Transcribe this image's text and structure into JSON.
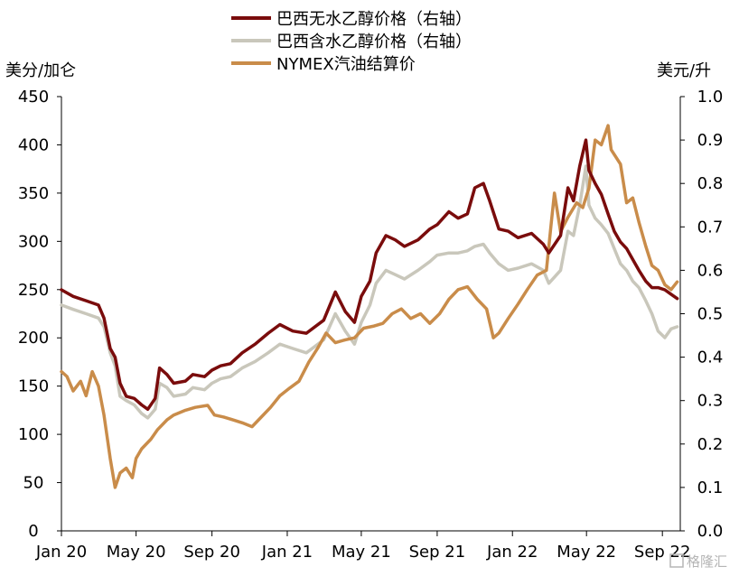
{
  "chart_data": {
    "type": "line",
    "title": "",
    "left_axis": {
      "label": "美分/加仑",
      "ylim": [
        0,
        450
      ],
      "ticks": [
        0,
        50,
        100,
        150,
        200,
        250,
        300,
        350,
        400,
        450
      ]
    },
    "right_axis": {
      "label": "美元/升",
      "ylim": [
        0,
        1.0
      ],
      "ticks": [
        "0.0",
        "0.1",
        "0.2",
        "0.3",
        "0.4",
        "0.5",
        "0.6",
        "0.7",
        "0.8",
        "0.9",
        "1.0"
      ]
    },
    "x_axis": {
      "range": [
        "2020-01-01",
        "2022-09-30"
      ],
      "ticks": [
        {
          "date": "2020-01-01",
          "label": "Jan 20"
        },
        {
          "date": "2020-05-01",
          "label": "May 20"
        },
        {
          "date": "2020-09-01",
          "label": "Sep 20"
        },
        {
          "date": "2021-01-01",
          "label": "Jan 21"
        },
        {
          "date": "2021-05-01",
          "label": "May 21"
        },
        {
          "date": "2021-09-01",
          "label": "Sep 21"
        },
        {
          "date": "2022-01-01",
          "label": "Jan 22"
        },
        {
          "date": "2022-05-01",
          "label": "May 22"
        },
        {
          "date": "2022-09-01",
          "label": "Sep 22"
        }
      ]
    },
    "grid": false,
    "legend_position": "top-center",
    "series": [
      {
        "name": "巴西无水乙醇价格（右轴）",
        "axis": "right",
        "color": "#7a0c0c",
        "points": [
          [
            "2020-01-01",
            0.555
          ],
          [
            "2020-01-20",
            0.54
          ],
          [
            "2020-02-10",
            0.53
          ],
          [
            "2020-03-01",
            0.52
          ],
          [
            "2020-03-10",
            0.49
          ],
          [
            "2020-03-20",
            0.42
          ],
          [
            "2020-03-28",
            0.4
          ],
          [
            "2020-04-05",
            0.34
          ],
          [
            "2020-04-15",
            0.31
          ],
          [
            "2020-04-28",
            0.305
          ],
          [
            "2020-05-10",
            0.29
          ],
          [
            "2020-05-20",
            0.28
          ],
          [
            "2020-06-01",
            0.305
          ],
          [
            "2020-06-08",
            0.375
          ],
          [
            "2020-06-20",
            0.36
          ],
          [
            "2020-07-01",
            0.34
          ],
          [
            "2020-07-20",
            0.345
          ],
          [
            "2020-08-01",
            0.36
          ],
          [
            "2020-08-20",
            0.355
          ],
          [
            "2020-09-01",
            0.37
          ],
          [
            "2020-09-15",
            0.38
          ],
          [
            "2020-10-01",
            0.385
          ],
          [
            "2020-10-20",
            0.41
          ],
          [
            "2020-11-10",
            0.43
          ],
          [
            "2020-12-01",
            0.455
          ],
          [
            "2020-12-20",
            0.475
          ],
          [
            "2021-01-10",
            0.46
          ],
          [
            "2021-02-01",
            0.455
          ],
          [
            "2021-03-01",
            0.485
          ],
          [
            "2021-03-20",
            0.55
          ],
          [
            "2021-04-05",
            0.505
          ],
          [
            "2021-04-20",
            0.48
          ],
          [
            "2021-05-01",
            0.54
          ],
          [
            "2021-05-15",
            0.575
          ],
          [
            "2021-05-25",
            0.64
          ],
          [
            "2021-06-10",
            0.68
          ],
          [
            "2021-06-25",
            0.67
          ],
          [
            "2021-07-10",
            0.655
          ],
          [
            "2021-08-01",
            0.67
          ],
          [
            "2021-08-20",
            0.695
          ],
          [
            "2021-09-01",
            0.705
          ],
          [
            "2021-09-20",
            0.735
          ],
          [
            "2021-10-05",
            0.72
          ],
          [
            "2021-10-20",
            0.73
          ],
          [
            "2021-11-01",
            0.79
          ],
          [
            "2021-11-15",
            0.8
          ],
          [
            "2021-11-25",
            0.76
          ],
          [
            "2021-12-10",
            0.695
          ],
          [
            "2021-12-25",
            0.69
          ],
          [
            "2022-01-10",
            0.675
          ],
          [
            "2022-02-01",
            0.685
          ],
          [
            "2022-02-20",
            0.66
          ],
          [
            "2022-03-01",
            0.64
          ],
          [
            "2022-03-20",
            0.68
          ],
          [
            "2022-04-01",
            0.79
          ],
          [
            "2022-04-10",
            0.76
          ],
          [
            "2022-04-20",
            0.84
          ],
          [
            "2022-04-30",
            0.9
          ],
          [
            "2022-05-05",
            0.83
          ],
          [
            "2022-05-15",
            0.8
          ],
          [
            "2022-05-25",
            0.775
          ],
          [
            "2022-06-05",
            0.73
          ],
          [
            "2022-06-15",
            0.69
          ],
          [
            "2022-06-25",
            0.665
          ],
          [
            "2022-07-05",
            0.65
          ],
          [
            "2022-07-15",
            0.625
          ],
          [
            "2022-07-25",
            0.6
          ],
          [
            "2022-08-05",
            0.575
          ],
          [
            "2022-08-15",
            0.56
          ],
          [
            "2022-08-25",
            0.56
          ],
          [
            "2022-09-05",
            0.555
          ],
          [
            "2022-09-15",
            0.545
          ],
          [
            "2022-09-25",
            0.535
          ]
        ]
      },
      {
        "name": "巴西含水乙醇价格（右轴）",
        "axis": "right",
        "color": "#c9c7bb",
        "points": [
          [
            "2020-01-01",
            0.52
          ],
          [
            "2020-01-20",
            0.51
          ],
          [
            "2020-02-10",
            0.5
          ],
          [
            "2020-03-01",
            0.49
          ],
          [
            "2020-03-10",
            0.47
          ],
          [
            "2020-03-20",
            0.41
          ],
          [
            "2020-03-28",
            0.38
          ],
          [
            "2020-04-05",
            0.31
          ],
          [
            "2020-04-15",
            0.3
          ],
          [
            "2020-04-28",
            0.29
          ],
          [
            "2020-05-10",
            0.27
          ],
          [
            "2020-05-20",
            0.26
          ],
          [
            "2020-06-01",
            0.28
          ],
          [
            "2020-06-08",
            0.34
          ],
          [
            "2020-06-20",
            0.33
          ],
          [
            "2020-07-01",
            0.31
          ],
          [
            "2020-07-20",
            0.315
          ],
          [
            "2020-08-01",
            0.33
          ],
          [
            "2020-08-20",
            0.325
          ],
          [
            "2020-09-01",
            0.34
          ],
          [
            "2020-09-15",
            0.35
          ],
          [
            "2020-10-01",
            0.355
          ],
          [
            "2020-10-20",
            0.375
          ],
          [
            "2020-11-10",
            0.39
          ],
          [
            "2020-12-01",
            0.41
          ],
          [
            "2020-12-20",
            0.43
          ],
          [
            "2021-01-10",
            0.42
          ],
          [
            "2021-02-01",
            0.41
          ],
          [
            "2021-03-01",
            0.44
          ],
          [
            "2021-03-20",
            0.5
          ],
          [
            "2021-04-05",
            0.46
          ],
          [
            "2021-04-20",
            0.43
          ],
          [
            "2021-05-01",
            0.48
          ],
          [
            "2021-05-15",
            0.52
          ],
          [
            "2021-05-25",
            0.57
          ],
          [
            "2021-06-10",
            0.6
          ],
          [
            "2021-06-25",
            0.59
          ],
          [
            "2021-07-10",
            0.58
          ],
          [
            "2021-08-01",
            0.6
          ],
          [
            "2021-08-20",
            0.62
          ],
          [
            "2021-09-01",
            0.635
          ],
          [
            "2021-09-20",
            0.64
          ],
          [
            "2021-10-05",
            0.64
          ],
          [
            "2021-10-20",
            0.645
          ],
          [
            "2021-11-01",
            0.655
          ],
          [
            "2021-11-15",
            0.66
          ],
          [
            "2021-11-25",
            0.64
          ],
          [
            "2021-12-10",
            0.615
          ],
          [
            "2021-12-25",
            0.6
          ],
          [
            "2022-01-10",
            0.605
          ],
          [
            "2022-02-01",
            0.615
          ],
          [
            "2022-02-20",
            0.6
          ],
          [
            "2022-03-01",
            0.57
          ],
          [
            "2022-03-20",
            0.6
          ],
          [
            "2022-04-01",
            0.69
          ],
          [
            "2022-04-10",
            0.68
          ],
          [
            "2022-04-20",
            0.75
          ],
          [
            "2022-04-30",
            0.84
          ],
          [
            "2022-05-05",
            0.75
          ],
          [
            "2022-05-15",
            0.72
          ],
          [
            "2022-05-25",
            0.705
          ],
          [
            "2022-06-05",
            0.685
          ],
          [
            "2022-06-15",
            0.65
          ],
          [
            "2022-06-25",
            0.615
          ],
          [
            "2022-07-05",
            0.6
          ],
          [
            "2022-07-15",
            0.575
          ],
          [
            "2022-07-25",
            0.56
          ],
          [
            "2022-08-05",
            0.53
          ],
          [
            "2022-08-15",
            0.5
          ],
          [
            "2022-08-25",
            0.46
          ],
          [
            "2022-09-05",
            0.445
          ],
          [
            "2022-09-15",
            0.465
          ],
          [
            "2022-09-25",
            0.47
          ]
        ]
      },
      {
        "name": "NYMEX汽油结算价",
        "axis": "left",
        "color": "#c98c4a",
        "points": [
          [
            "2020-01-01",
            165
          ],
          [
            "2020-01-10",
            160
          ],
          [
            "2020-01-20",
            145
          ],
          [
            "2020-02-01",
            155
          ],
          [
            "2020-02-10",
            140
          ],
          [
            "2020-02-20",
            165
          ],
          [
            "2020-03-01",
            150
          ],
          [
            "2020-03-10",
            120
          ],
          [
            "2020-03-20",
            75
          ],
          [
            "2020-03-28",
            45
          ],
          [
            "2020-04-05",
            60
          ],
          [
            "2020-04-15",
            65
          ],
          [
            "2020-04-25",
            55
          ],
          [
            "2020-05-01",
            75
          ],
          [
            "2020-05-10",
            85
          ],
          [
            "2020-05-25",
            95
          ],
          [
            "2020-06-05",
            105
          ],
          [
            "2020-06-20",
            115
          ],
          [
            "2020-07-01",
            120
          ],
          [
            "2020-07-20",
            125
          ],
          [
            "2020-08-05",
            128
          ],
          [
            "2020-08-25",
            130
          ],
          [
            "2020-09-05",
            120
          ],
          [
            "2020-09-20",
            118
          ],
          [
            "2020-10-05",
            115
          ],
          [
            "2020-10-20",
            112
          ],
          [
            "2020-11-05",
            108
          ],
          [
            "2020-11-20",
            118
          ],
          [
            "2020-12-05",
            128
          ],
          [
            "2020-12-20",
            140
          ],
          [
            "2021-01-05",
            148
          ],
          [
            "2021-01-20",
            155
          ],
          [
            "2021-02-05",
            175
          ],
          [
            "2021-02-20",
            190
          ],
          [
            "2021-03-05",
            205
          ],
          [
            "2021-03-20",
            195
          ],
          [
            "2021-04-05",
            198
          ],
          [
            "2021-04-20",
            200
          ],
          [
            "2021-05-05",
            210
          ],
          [
            "2021-05-20",
            212
          ],
          [
            "2021-06-05",
            215
          ],
          [
            "2021-06-20",
            225
          ],
          [
            "2021-07-05",
            230
          ],
          [
            "2021-07-20",
            220
          ],
          [
            "2021-08-05",
            225
          ],
          [
            "2021-08-20",
            215
          ],
          [
            "2021-09-05",
            225
          ],
          [
            "2021-09-20",
            240
          ],
          [
            "2021-10-05",
            250
          ],
          [
            "2021-10-20",
            253
          ],
          [
            "2021-11-05",
            240
          ],
          [
            "2021-11-20",
            230
          ],
          [
            "2021-12-01",
            200
          ],
          [
            "2021-12-10",
            205
          ],
          [
            "2021-12-25",
            220
          ],
          [
            "2022-01-10",
            235
          ],
          [
            "2022-01-25",
            250
          ],
          [
            "2022-02-10",
            265
          ],
          [
            "2022-02-25",
            270
          ],
          [
            "2022-03-05",
            320
          ],
          [
            "2022-03-10",
            350
          ],
          [
            "2022-03-20",
            310
          ],
          [
            "2022-04-01",
            325
          ],
          [
            "2022-04-15",
            340
          ],
          [
            "2022-04-25",
            335
          ],
          [
            "2022-05-05",
            355
          ],
          [
            "2022-05-15",
            405
          ],
          [
            "2022-05-25",
            400
          ],
          [
            "2022-06-05",
            420
          ],
          [
            "2022-06-10",
            395
          ],
          [
            "2022-06-25",
            380
          ],
          [
            "2022-07-05",
            340
          ],
          [
            "2022-07-15",
            345
          ],
          [
            "2022-07-25",
            320
          ],
          [
            "2022-08-05",
            295
          ],
          [
            "2022-08-15",
            275
          ],
          [
            "2022-08-25",
            270
          ],
          [
            "2022-09-05",
            255
          ],
          [
            "2022-09-15",
            250
          ],
          [
            "2022-09-25",
            258
          ]
        ]
      }
    ]
  },
  "watermark": "格隆汇"
}
